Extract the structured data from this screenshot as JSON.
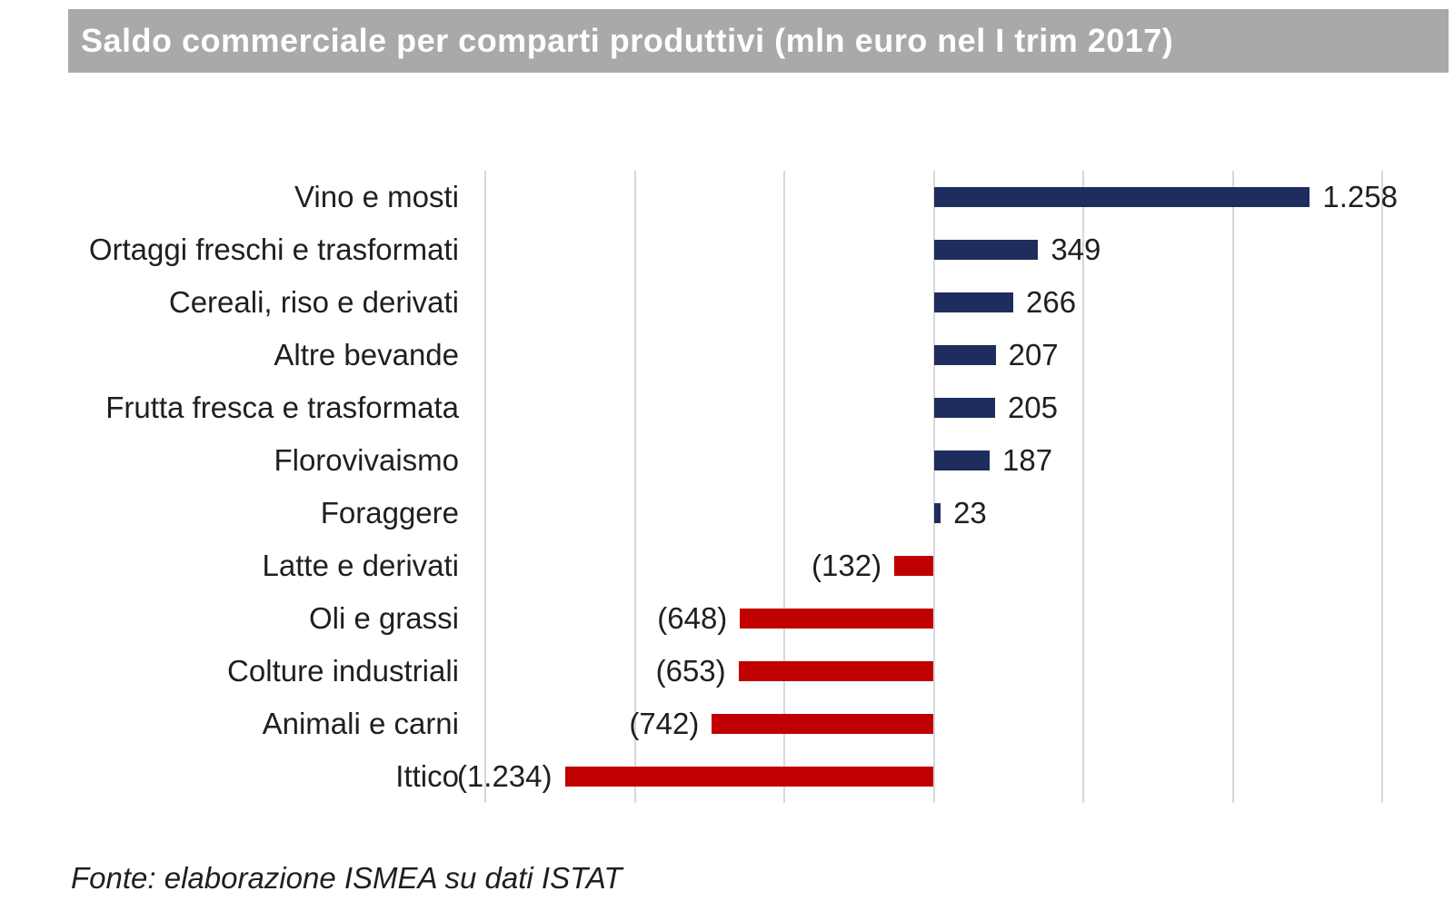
{
  "title": "Saldo commerciale per comparti produttivi (mln euro nel I trim 2017)",
  "source_note": "Fonte: elaborazione ISMEA su dati ISTAT",
  "colors": {
    "positive_bar": "#1F2C5E",
    "negative_bar": "#C00000",
    "title_background": "#A9A9A9",
    "title_text": "#FFFFFF",
    "gridline": "#D8D8D8",
    "text": "#1F1F1F"
  },
  "chart_data": {
    "type": "bar",
    "orientation": "horizontal",
    "title": "Saldo commerciale per comparti produttivi (mln euro nel I trim 2017)",
    "xlabel": "",
    "ylabel": "",
    "xlim": [
      -1500,
      1500
    ],
    "gridline_step": 500,
    "grid": "vertical",
    "legend": "none",
    "categories": [
      "Vino e mosti",
      "Ortaggi freschi e trasformati",
      "Cereali, riso e derivati",
      "Altre bevande",
      "Frutta fresca e trasformata",
      "Florovivaismo",
      "Foraggere",
      "Latte e derivati",
      "Oli e grassi",
      "Colture industriali",
      "Animali e carni",
      "Ittico"
    ],
    "values": [
      1258,
      349,
      266,
      207,
      205,
      187,
      23,
      -132,
      -648,
      -653,
      -742,
      -1234
    ],
    "value_labels": [
      "1.258",
      "349",
      "266",
      "207",
      "205",
      "187",
      "23",
      "(132)",
      "(648)",
      "(653)",
      "(742)",
      "(1.234)"
    ]
  }
}
